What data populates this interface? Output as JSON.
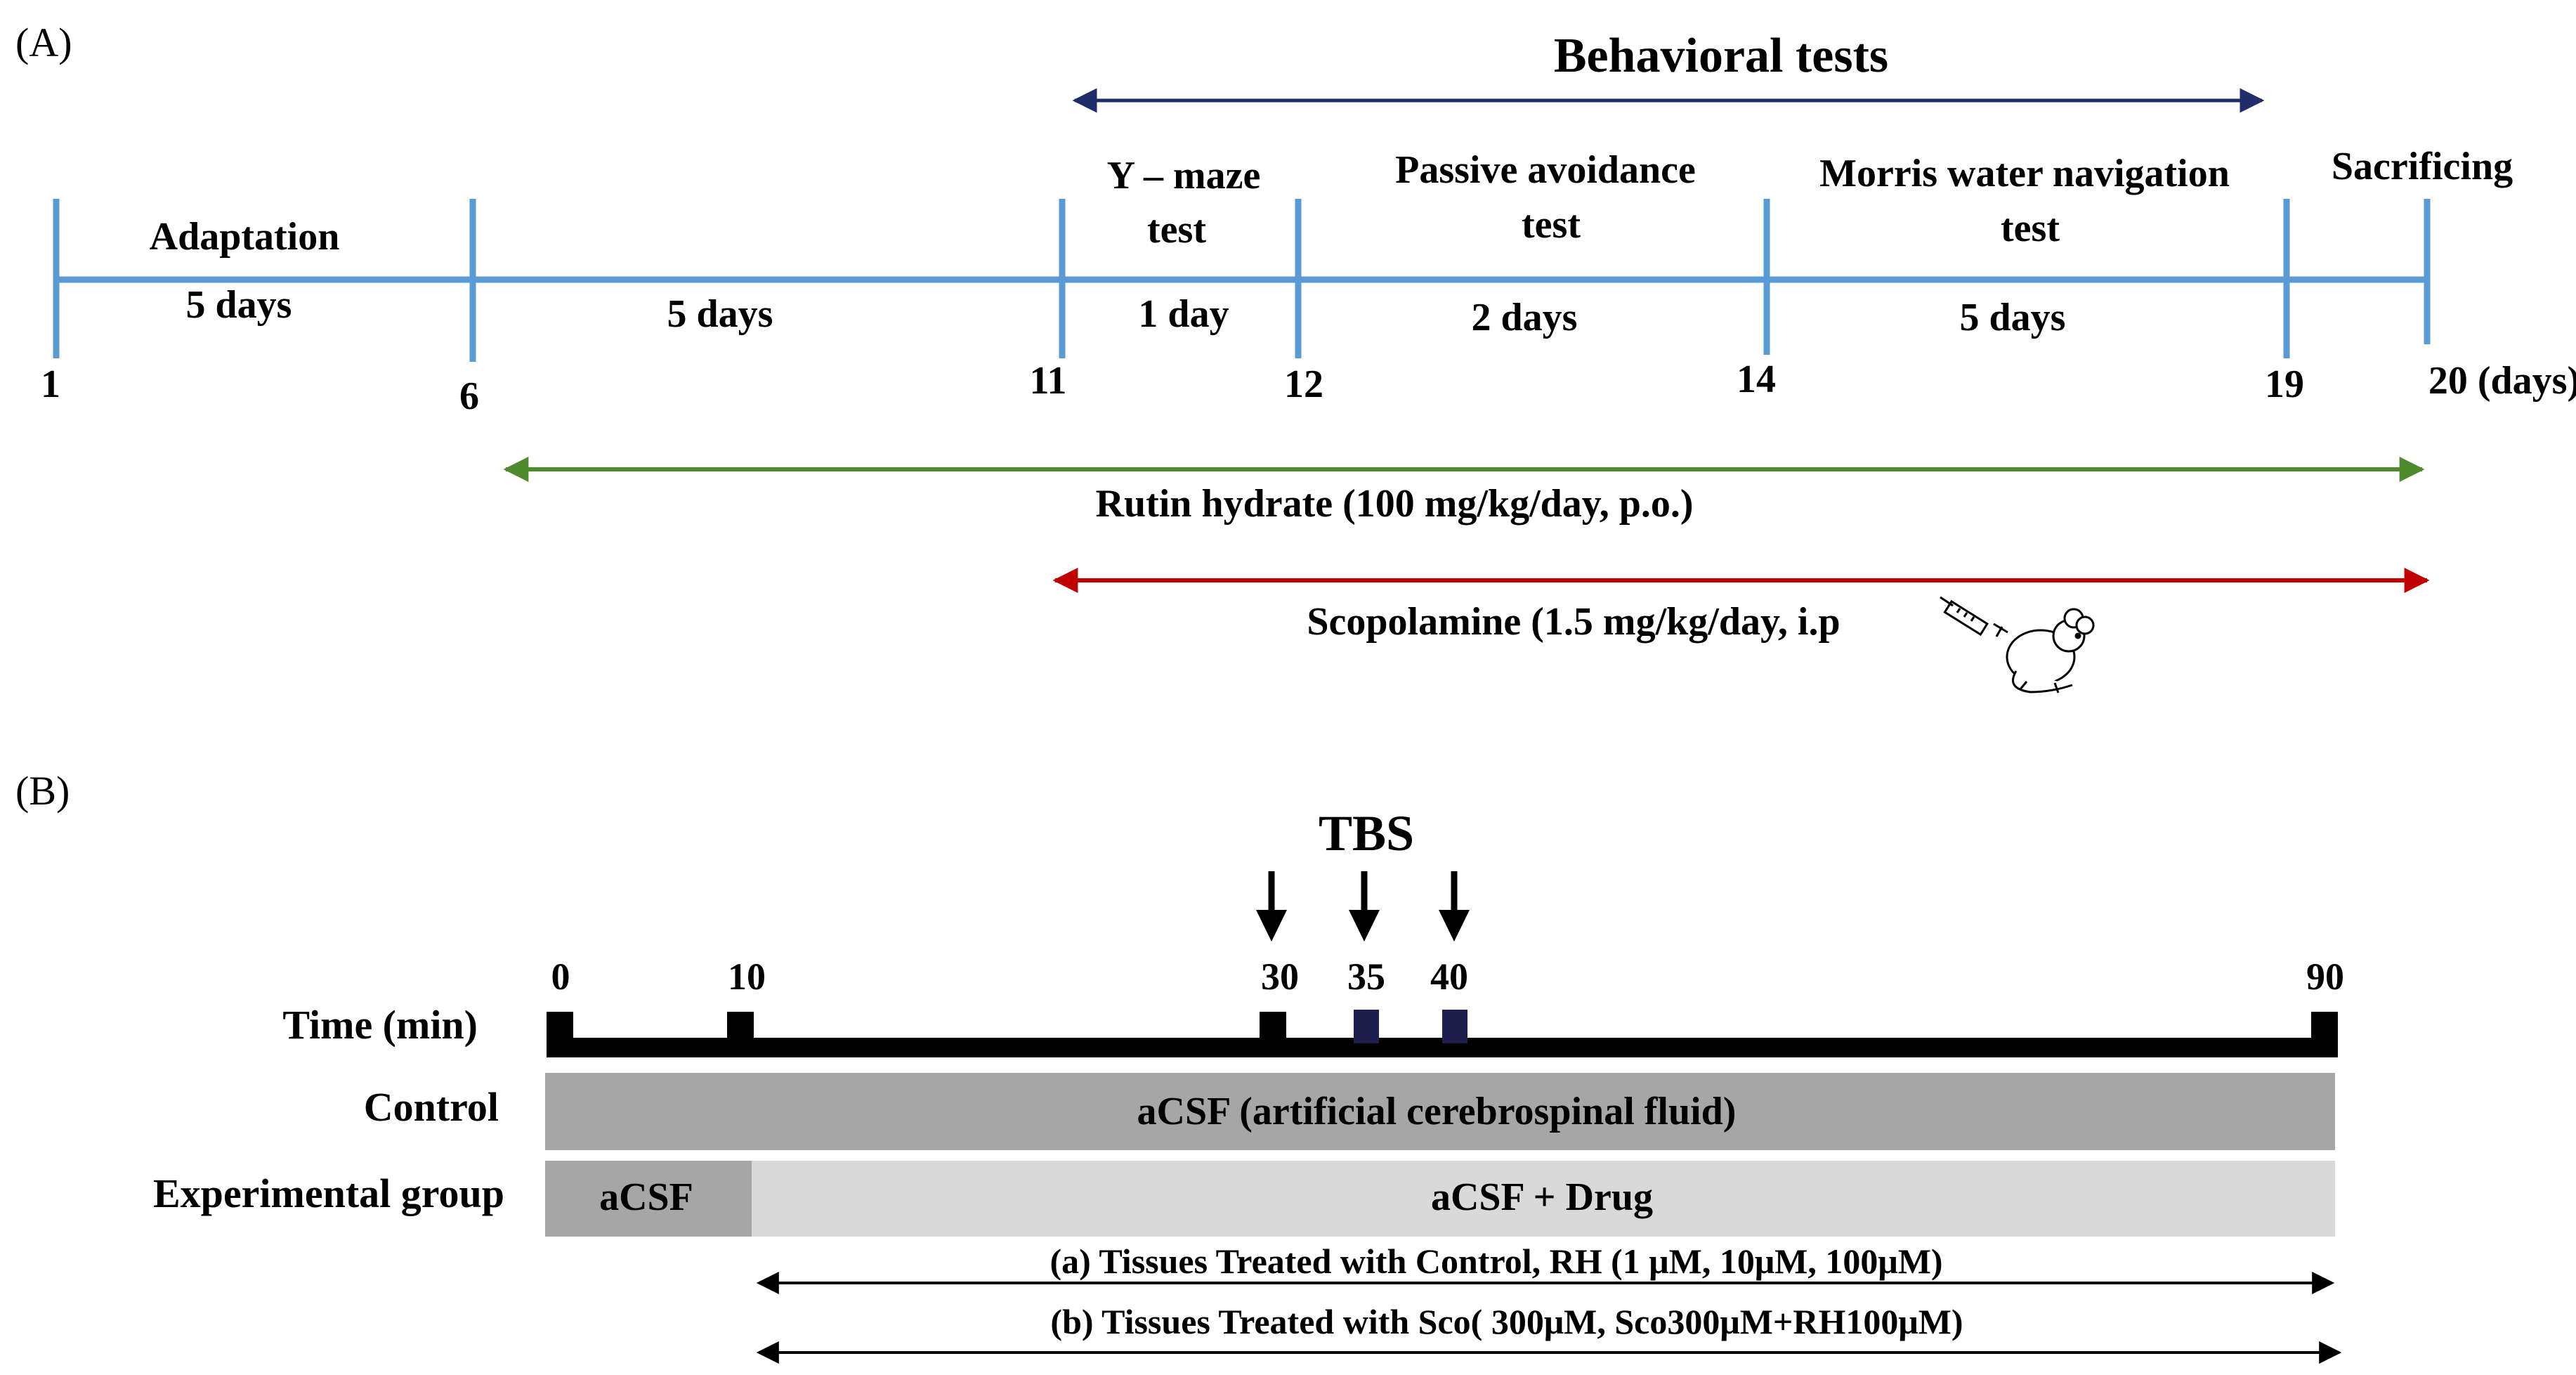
{
  "colors": {
    "timeline_blue": "#5b9bd5",
    "navy_arrow": "#1f2d6b",
    "green_arrow": "#4f8b2e",
    "red_arrow": "#c00000",
    "control_bar": "#a6a6a6",
    "acsf_block": "#a6a6a6",
    "drug_bar": "#d9d9d9",
    "black": "#000000",
    "tbs_marker": "#1f1f4d"
  },
  "panel_a": {
    "label": "(A)",
    "behavioral_tests": "Behavioral tests",
    "phases": [
      {
        "label": "Adaptation",
        "duration": "5 days"
      },
      {
        "label": "",
        "duration": "5 days"
      },
      {
        "label_line1": "Y – maze",
        "label_line2": "test",
        "duration": "1 day"
      },
      {
        "label_line1": "Passive avoidance",
        "label_line2": "test",
        "duration": "2 days"
      },
      {
        "label_line1": "Morris water navigation",
        "label_line2": "test",
        "duration": "5 days"
      },
      {
        "label": "Sacrificing",
        "duration": ""
      }
    ],
    "day_ticks": [
      "1",
      "6",
      "11",
      "12",
      "14",
      "19",
      "20 (days)"
    ],
    "rutin": "Rutin hydrate (100 mg/kg/day, p.o.)",
    "scopolamine": "Scopolamine (1.5 mg/kg/day, i.p",
    "icons": [
      "syringe-icon",
      "mouse-icon"
    ]
  },
  "panel_b": {
    "label": "(B)",
    "tbs": "TBS",
    "time_ticks": [
      "0",
      "10",
      "30",
      "35",
      "40",
      "90"
    ],
    "time_label": "Time (min)",
    "control_label": "Control",
    "control_bar_text": "aCSF (artificial cerebrospinal fluid)",
    "experimental_label": "Experimental group",
    "acsf_text": "aCSF",
    "drug_text": "aCSF + Drug",
    "treatment_a": "(a) Tissues Treated with Control, RH (1 μM, 10μM, 100μM)",
    "treatment_b": "(b) Tissues Treated with Sco( 300μM, Sco300μM+RH100μM)"
  }
}
